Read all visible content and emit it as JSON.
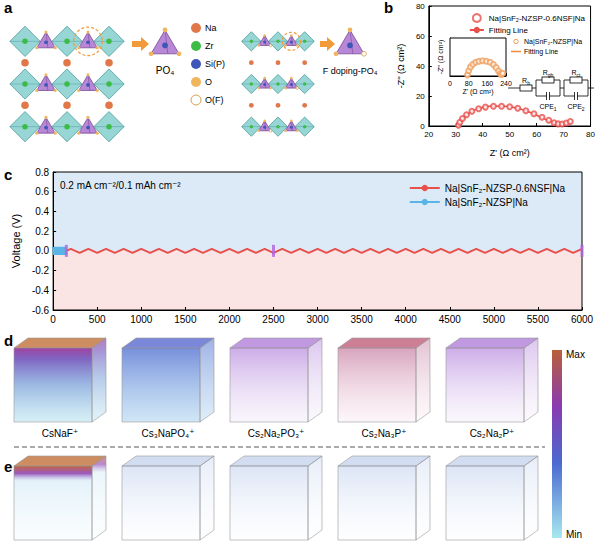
{
  "panel_letters": [
    "a",
    "b",
    "c",
    "d",
    "e"
  ],
  "panel_a": {
    "atoms": [
      {
        "label": "Na",
        "color": "#e0784a"
      },
      {
        "label": "Zr",
        "color": "#3cbc46"
      },
      {
        "label": "Si(P)",
        "color": "#3d56b8"
      },
      {
        "label": "O",
        "color": "#efb65e"
      },
      {
        "label": "O(F)",
        "color": "#ffffff"
      }
    ],
    "tetrahedra": [
      "PO₄",
      "F doping-PO₄"
    ]
  },
  "chart_data": [
    {
      "type": "scatter",
      "xlabel": "Z' (Ω cm²)",
      "ylabel": "-Z'' (Ω cm²)",
      "xlim": [
        20,
        80
      ],
      "xticks": [
        20,
        30,
        40,
        50,
        60,
        70,
        80
      ],
      "ylim": [
        0,
        80
      ],
      "yticks": [
        0,
        20,
        40,
        60,
        80
      ],
      "legend": "upper right",
      "annotations": [
        "Rb",
        "Rgb",
        "CPE1",
        "Rct",
        "CPE2"
      ],
      "series": [
        {
          "name": "Na|SnF₂-NZSP-0.6NSF|Na",
          "type": "scatter",
          "marker": "open_circle",
          "color": "#e8504c",
          "x": [
            31,
            31.5,
            32.5,
            34,
            36,
            38.5,
            41,
            44,
            47,
            50,
            53,
            56,
            59,
            62,
            64.5,
            66.5,
            68,
            69.5,
            71,
            72.5
          ],
          "values": [
            0.5,
            2.5,
            5,
            7.5,
            9.8,
            11.5,
            12.6,
            13.2,
            13.2,
            12.8,
            11.8,
            10.2,
            8.2,
            5.8,
            3.8,
            2.2,
            1.4,
            1.3,
            2,
            3
          ]
        },
        {
          "name": "Fitting Line",
          "type": "line",
          "color": "#e8504c",
          "x": [
            31,
            33,
            36,
            40,
            44,
            48,
            52,
            56,
            60,
            63,
            66,
            68,
            70,
            72.5
          ],
          "values": [
            0.3,
            5.5,
            9.8,
            12.4,
            13.3,
            13.2,
            12.2,
            10.2,
            7.2,
            4.6,
            2.3,
            1.4,
            1.6,
            3
          ]
        }
      ]
    },
    {
      "type": "scatter",
      "xlabel": "Z' (Ω cm²)",
      "ylabel": "-Z'' (Ω cm²)",
      "xlim": [
        0,
        240
      ],
      "xticks": [
        0,
        80,
        160,
        240
      ],
      "ylim": [
        0,
        100
      ],
      "yticks": [
        0,
        50,
        100
      ],
      "tick_labels": "x",
      "legend": "right",
      "series": [
        {
          "name": "Na|SnF₂-NZSP|Na",
          "type": "scatter",
          "marker": "open_circle",
          "color": "#f0a060",
          "x": [
            75,
            80,
            88,
            98,
            110,
            124,
            140,
            156,
            172,
            186,
            198,
            208,
            215,
            220,
            226
          ],
          "values": [
            3,
            14,
            24,
            31,
            36,
            39,
            40,
            39,
            36,
            30,
            22,
            13,
            6,
            4,
            7
          ]
        },
        {
          "name": "Fitting Line",
          "type": "line",
          "color": "#f08c3c",
          "x": [
            74,
            82,
            95,
            110,
            130,
            150,
            170,
            190,
            205,
            214,
            220,
            226
          ],
          "values": [
            2,
            16,
            28,
            36,
            40,
            40,
            36,
            27,
            15,
            6,
            4,
            7
          ]
        }
      ]
    },
    {
      "type": "line",
      "ylabel": "Voltage (V)",
      "xlim": [
        0,
        6000
      ],
      "xticks": [
        0,
        500,
        1000,
        1500,
        2000,
        2500,
        3000,
        3500,
        4000,
        4500,
        5000,
        5500,
        6000
      ],
      "ylim": [
        -0.6,
        0.8
      ],
      "yticks": [
        -0.6,
        -0.4,
        -0.2,
        {
          "value": 0,
          "label": "0.0"
        },
        0.2,
        0.4,
        0.6,
        0.8
      ],
      "legend": "upper right",
      "annotations": [
        "0.2 mA cm⁻²/0.1 mAh cm⁻²"
      ],
      "series": [
        {
          "name": "Na|SnF₂-NZSP-0.6NSF|Na",
          "color": "#e8504c",
          "x": [
            0,
            100,
            200,
            300,
            400,
            500,
            600,
            700,
            800,
            900,
            1000,
            1100,
            1200,
            1300,
            1400,
            1500,
            1600,
            1700,
            1800,
            1900,
            2000,
            2100,
            2200,
            2300,
            2400,
            2500,
            2600,
            2700,
            2800,
            2900,
            3000,
            3100,
            3200,
            3300,
            3400,
            3500,
            3600,
            3700,
            3800,
            3900,
            4000,
            4100,
            4200,
            4300,
            4400,
            4500,
            4600,
            4700,
            4800,
            4900,
            5000,
            5100,
            5200,
            5300,
            5400,
            5500,
            5600,
            5700,
            5800,
            5900,
            6000
          ],
          "values": [
            0.02,
            -0.02,
            0.02,
            -0.02,
            0.02,
            -0.02,
            0.02,
            -0.02,
            0.02,
            -0.02,
            0.02,
            -0.02,
            0.02,
            -0.02,
            0.02,
            -0.02,
            0.02,
            -0.02,
            0.02,
            -0.02,
            0.02,
            -0.02,
            0.02,
            -0.02,
            0.02,
            -0.02,
            0.02,
            -0.02,
            0.02,
            -0.02,
            0.02,
            -0.02,
            0.02,
            -0.02,
            0.02,
            -0.02,
            0.02,
            -0.02,
            0.02,
            -0.02,
            0.02,
            -0.02,
            0.02,
            -0.02,
            0.02,
            -0.02,
            0.02,
            -0.02,
            0.02,
            -0.02,
            0.02,
            -0.02,
            0.02,
            -0.02,
            0.02,
            -0.02,
            0.02,
            -0.02,
            0.02,
            -0.02,
            0.02
          ]
        },
        {
          "name": "Na|SnF₂-NZSP|Na",
          "color": "#5ab4e6",
          "x": [
            0,
            10,
            20,
            30,
            40,
            50,
            60,
            70,
            80,
            90,
            100,
            110,
            120,
            130,
            140,
            150
          ],
          "values": [
            0.04,
            -0.04,
            0.04,
            -0.04,
            0.04,
            -0.04,
            0.04,
            -0.04,
            0.04,
            -0.04,
            0.04,
            -0.04,
            0.04,
            -0.04,
            0.04,
            -0.04
          ]
        }
      ],
      "markers": {
        "color": "#b060e0",
        "x": [
          150,
          2500,
          6000
        ],
        "values": [
          0,
          0,
          0
        ]
      }
    }
  ],
  "panel_de": {
    "species": [
      "CsNaF⁺",
      "Cs₃NaPO₄⁺",
      "Cs₂Na₂PO₃⁺",
      "Cs₂Na₃P⁺",
      "Cs₂Na₂P⁺"
    ],
    "colorbar": {
      "max": "Max",
      "min": "Min"
    }
  }
}
